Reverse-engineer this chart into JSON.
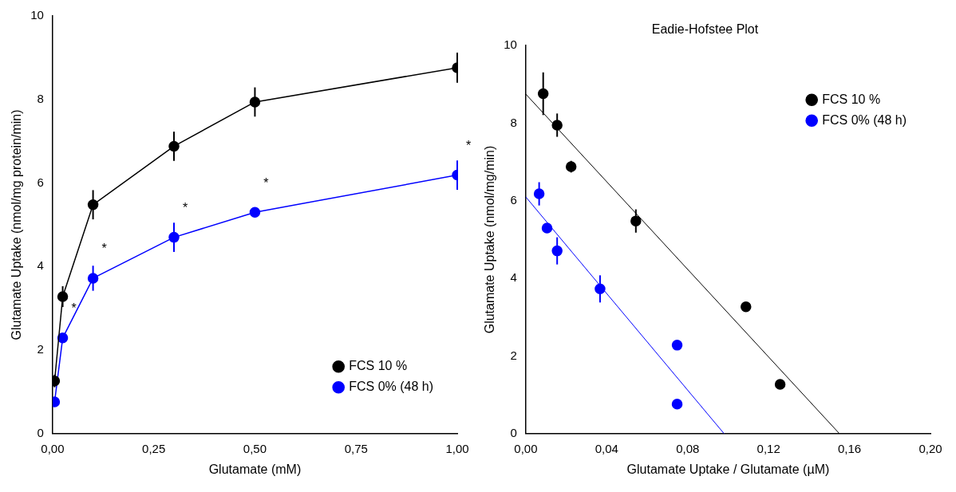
{
  "chart_data": [
    {
      "type": "line",
      "xlabel": "Glutamate (mM)",
      "ylabel": "Glutamate Uptake (nmol/mg protein/min)",
      "x": [
        0.005,
        0.025,
        0.1,
        0.3,
        0.5,
        1.0
      ],
      "series": [
        {
          "name": "FCS 10 %",
          "color": "#000000",
          "values": [
            1.26,
            3.28,
            5.48,
            6.88,
            7.94,
            8.76
          ],
          "errors": [
            0.15,
            0.25,
            0.35,
            0.35,
            0.35,
            0.36
          ]
        },
        {
          "name": "FCS 0% (48 h)",
          "color": "#0000ff",
          "values": [
            0.76,
            2.29,
            3.72,
            4.7,
            5.3,
            6.19
          ],
          "errors": [
            0.1,
            0.1,
            0.3,
            0.35,
            0.1,
            0.35
          ]
        }
      ],
      "xlim": [
        0,
        1
      ],
      "xticks": [
        {
          "value": 0,
          "label": "0,00"
        },
        {
          "value": 0.25,
          "label": "0,25"
        },
        {
          "value": 0.5,
          "label": "0,50"
        },
        {
          "value": 0.75,
          "label": "0,75"
        },
        {
          "value": 1,
          "label": "1,00"
        }
      ],
      "ylim": [
        0,
        10
      ],
      "yticks": [
        0,
        2,
        4,
        6,
        8,
        10
      ],
      "annotations": [
        {
          "text": "*",
          "x": 0.025,
          "y": 2.29
        },
        {
          "text": "*",
          "x": 0.1,
          "y": 3.72
        },
        {
          "text": "*",
          "x": 0.3,
          "y": 4.7
        },
        {
          "text": "*",
          "x": 0.5,
          "y": 5.3
        },
        {
          "text": "*",
          "x": 1.0,
          "y": 6.19
        }
      ],
      "grid": false,
      "legend": "bottom right",
      "marker": "circle",
      "line_style": "solid"
    },
    {
      "type": "scatter",
      "title": "Eadie-Hofstee Plot",
      "xlabel": "Glutamate Uptake / Glutamate (µM)",
      "ylabel": "Glutamate Uptake (nmol/mg/min)",
      "series": [
        {
          "name": "FCS 10 %",
          "color": "#000000",
          "x": [
            0.0086,
            0.0155,
            0.0224,
            0.0544,
            0.1088,
            0.1257
          ],
          "values": [
            8.76,
            7.95,
            6.88,
            5.48,
            3.27,
            1.27
          ],
          "errors": [
            0.55,
            0.3,
            0.15,
            0.3,
            null,
            null
          ]
        },
        {
          "name": "FCS 0% (48 h)",
          "color": "#0000ff",
          "x": [
            0.0066,
            0.0105,
            0.0155,
            0.0367,
            0.0748,
            0.0748
          ],
          "values": [
            6.18,
            5.3,
            4.71,
            3.73,
            2.28,
            0.76
          ],
          "errors": [
            0.3,
            null,
            0.35,
            0.35,
            null,
            null
          ]
        },
        {
          "type": "line",
          "color": "#000000",
          "marker": "none",
          "x": [
            0,
            0.155
          ],
          "values": [
            8.75,
            0
          ]
        },
        {
          "type": "line",
          "color": "#0000ff",
          "marker": "none",
          "x": [
            0,
            0.098
          ],
          "values": [
            6.1,
            0
          ]
        }
      ],
      "xlim": [
        0,
        0.2
      ],
      "xticks": [
        {
          "value": 0,
          "label": "0,00"
        },
        {
          "value": 0.04,
          "label": "0,04"
        },
        {
          "value": 0.08,
          "label": "0,08"
        },
        {
          "value": 0.12,
          "label": "0,12"
        },
        {
          "value": 0.16,
          "label": "0,16"
        },
        {
          "value": 0.2,
          "label": "0,20"
        }
      ],
      "ylim": [
        0,
        10
      ],
      "yticks": [
        0,
        2,
        4,
        6,
        8,
        10
      ],
      "grid": false,
      "legend": "top right",
      "marker": "circle"
    }
  ]
}
